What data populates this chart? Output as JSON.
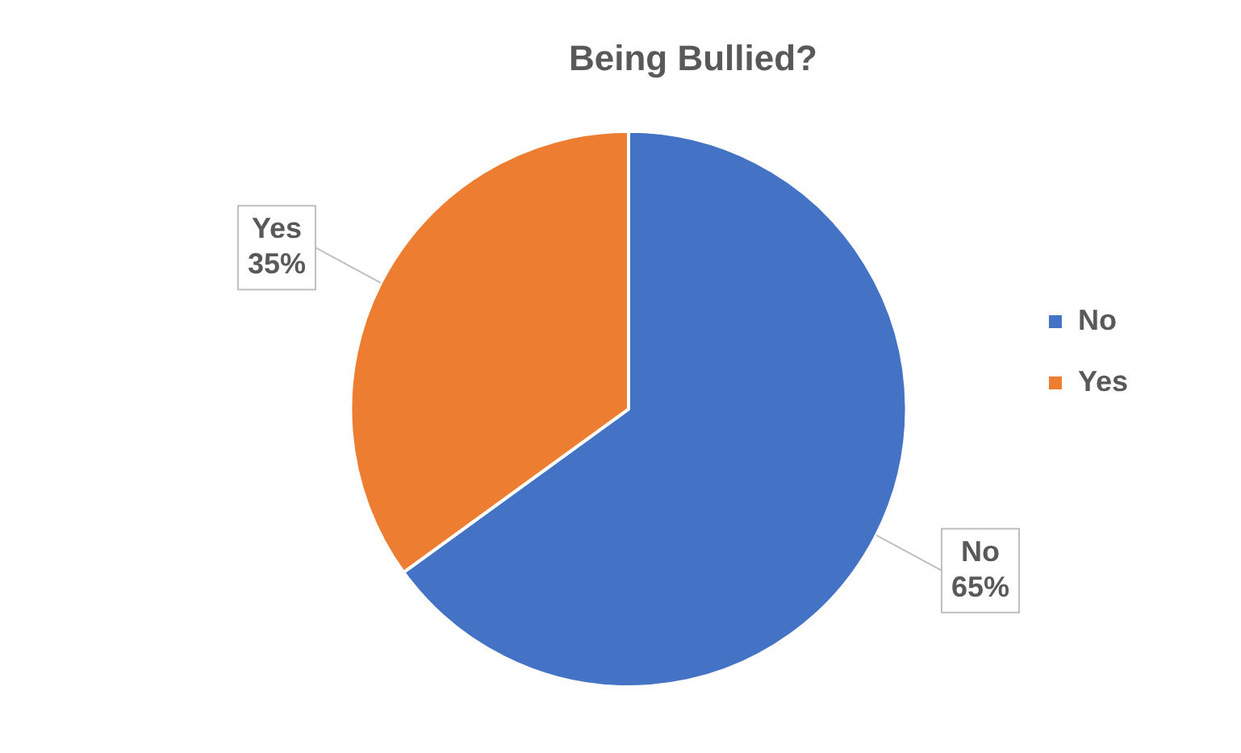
{
  "chart_data": {
    "type": "pie",
    "title": "Being Bullied?",
    "categories": [
      "No",
      "Yes"
    ],
    "values": [
      65,
      35
    ],
    "value_labels": [
      "65%",
      "35%"
    ],
    "colors": [
      "#4472c4",
      "#ed7d31"
    ],
    "legend": "right"
  }
}
